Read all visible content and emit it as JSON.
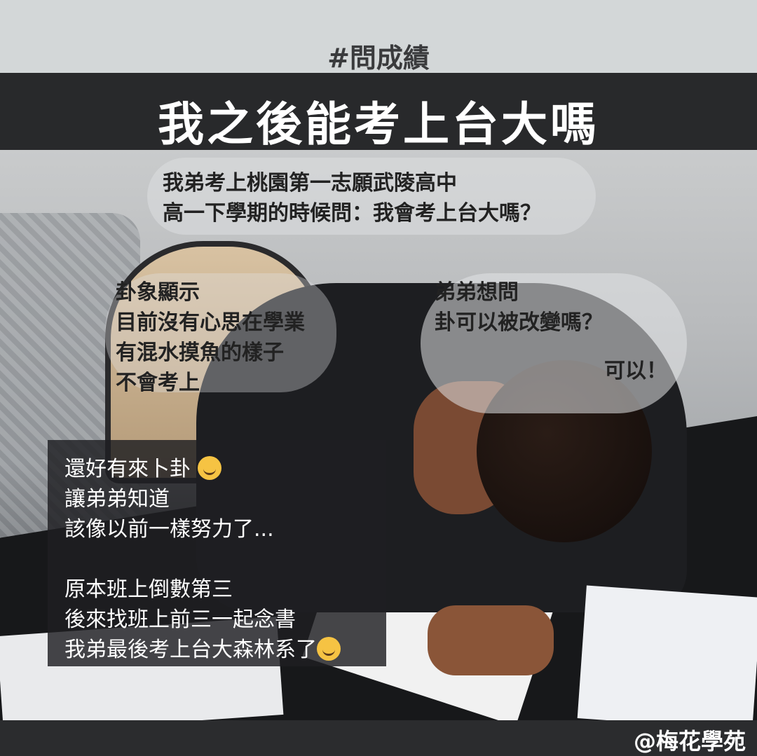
{
  "header": {
    "hashtag": "#問成績",
    "title": "我之後能考上台大嗎"
  },
  "photo": {
    "intro_lines": [
      "我弟考上桃園第一志願武陵高中",
      "高一下學期的時候問：我會考上台大嗎？"
    ],
    "left_lines": [
      "卦象顯示",
      "目前沒有心思在學業",
      "有混水摸魚的樣子",
      "不會考上"
    ],
    "right_lines": [
      "弟弟想問",
      "卦可以被改變嗎？"
    ],
    "yes_text": "可以！"
  },
  "box": {
    "line1": "還好有來卜卦",
    "line2": "讓弟弟知道",
    "line3": "該像以前一樣努力了...",
    "line4": "原本班上倒數第三",
    "line5": "後來找班上前三一起念書",
    "line6": "我弟最後考上台大森林系了"
  },
  "emoji": {
    "first": "smiling-face-with-hearts-icon",
    "second": "grinning-squinting-face-icon"
  },
  "footer": {
    "credit": "@梅花學苑"
  }
}
